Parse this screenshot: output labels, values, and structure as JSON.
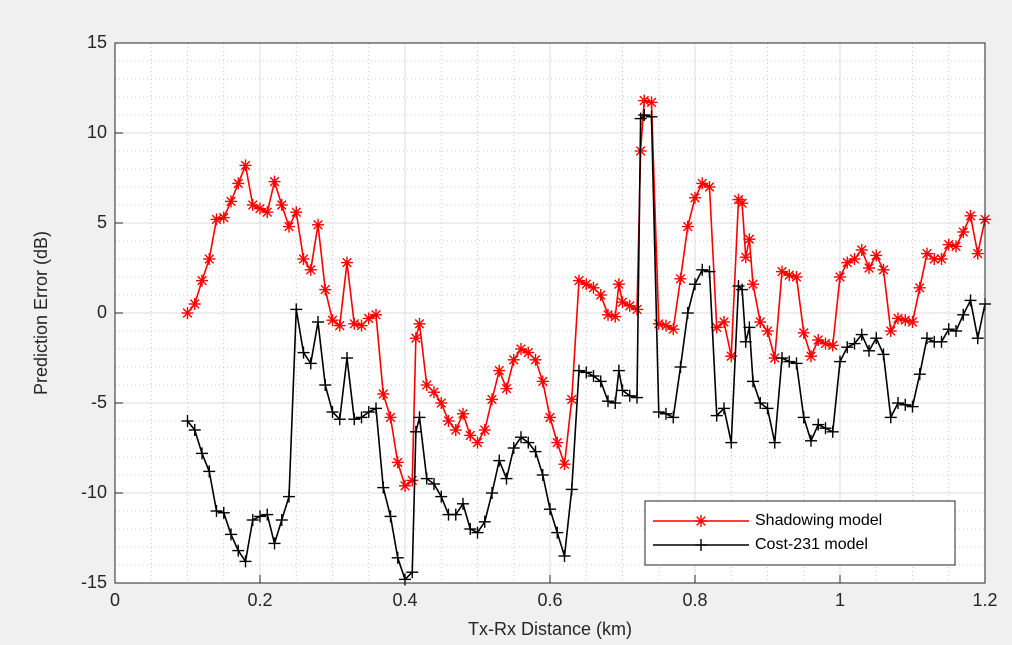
{
  "chart_data": {
    "type": "line",
    "xlabel": "Tx-Rx Distance (km)",
    "ylabel": "Prediction Error (dB)",
    "x": [
      0.1,
      0.11,
      0.12,
      0.13,
      0.14,
      0.15,
      0.16,
      0.17,
      0.18,
      0.19,
      0.2,
      0.21,
      0.22,
      0.23,
      0.24,
      0.25,
      0.26,
      0.27,
      0.28,
      0.29,
      0.3,
      0.31,
      0.32,
      0.33,
      0.34,
      0.35,
      0.36,
      0.37,
      0.38,
      0.39,
      0.4,
      0.41,
      0.415,
      0.42,
      0.43,
      0.44,
      0.45,
      0.46,
      0.47,
      0.48,
      0.49,
      0.5,
      0.51,
      0.52,
      0.53,
      0.54,
      0.55,
      0.56,
      0.57,
      0.58,
      0.59,
      0.6,
      0.61,
      0.62,
      0.63,
      0.64,
      0.65,
      0.66,
      0.67,
      0.68,
      0.69,
      0.695,
      0.7,
      0.71,
      0.72,
      0.725,
      0.73,
      0.74,
      0.75,
      0.76,
      0.77,
      0.78,
      0.79,
      0.8,
      0.81,
      0.82,
      0.83,
      0.84,
      0.85,
      0.86,
      0.865,
      0.87,
      0.875,
      0.88,
      0.89,
      0.9,
      0.91,
      0.92,
      0.93,
      0.94,
      0.95,
      0.96,
      0.97,
      0.98,
      0.99,
      1.0,
      1.01,
      1.02,
      1.03,
      1.04,
      1.05,
      1.06,
      1.07,
      1.08,
      1.09,
      1.1,
      1.11,
      1.12,
      1.13,
      1.14,
      1.15,
      1.16,
      1.17,
      1.18,
      1.19,
      1.2
    ],
    "series": [
      {
        "name": "Shadowing model",
        "color": "#ff0000",
        "marker": "asterisk",
        "values": [
          0,
          0.5,
          1.8,
          3.0,
          5.2,
          5.3,
          6.2,
          7.2,
          8.2,
          6.0,
          5.8,
          5.6,
          7.3,
          6.0,
          4.8,
          5.6,
          3.0,
          2.4,
          4.9,
          1.3,
          -0.4,
          -0.7,
          2.8,
          -0.6,
          -0.7,
          -0.3,
          -0.1,
          -4.5,
          -5.8,
          -8.3,
          -9.6,
          -9.3,
          -1.4,
          -0.6,
          -4.0,
          -4.4,
          -5.0,
          -6.0,
          -6.5,
          -5.6,
          -6.8,
          -7.2,
          -6.5,
          -4.8,
          -3.2,
          -4.2,
          -2.6,
          -2.0,
          -2.2,
          -2.6,
          -3.8,
          -5.8,
          -7.2,
          -8.4,
          -4.8,
          1.8,
          1.6,
          1.4,
          1.0,
          -0.1,
          -0.2,
          1.6,
          0.6,
          0.4,
          0.2,
          9.0,
          11.8,
          11.7,
          -0.6,
          -0.7,
          -0.9,
          1.9,
          4.8,
          6.4,
          7.2,
          7.0,
          -0.8,
          -0.5,
          -2.4,
          6.3,
          6.1,
          3.1,
          4.1,
          1.6,
          -0.5,
          -1.0,
          -2.5,
          2.3,
          2.1,
          2.0,
          -1.1,
          -2.4,
          -1.5,
          -1.7,
          -1.8,
          2.0,
          2.8,
          3.0,
          3.5,
          2.5,
          3.2,
          2.4,
          -1.0,
          -0.3,
          -0.4,
          -0.5,
          1.4,
          3.3,
          3.0,
          3.0,
          3.8,
          3.7,
          4.5,
          5.4,
          3.3,
          5.2
        ]
      },
      {
        "name": "Cost-231 model",
        "color": "#000000",
        "marker": "plus",
        "values": [
          -6.0,
          -6.5,
          -7.8,
          -8.8,
          -11.0,
          -11.1,
          -12.3,
          -13.2,
          -13.8,
          -11.5,
          -11.3,
          -11.2,
          -12.8,
          -11.5,
          -10.2,
          0.2,
          -2.2,
          -2.8,
          -0.5,
          -4.0,
          -5.5,
          -5.9,
          -2.5,
          -5.9,
          -5.8,
          -5.5,
          -5.3,
          -9.7,
          -11.3,
          -13.6,
          -14.8,
          -14.4,
          -6.6,
          -5.8,
          -9.2,
          -9.5,
          -10.2,
          -11.2,
          -11.2,
          -10.6,
          -12.0,
          -12.2,
          -11.6,
          -10.0,
          -8.2,
          -9.2,
          -7.5,
          -6.9,
          -7.2,
          -7.7,
          -9.0,
          -10.9,
          -12.2,
          -13.5,
          -9.8,
          -3.2,
          -3.3,
          -3.5,
          -3.8,
          -4.9,
          -5.0,
          -3.2,
          -4.3,
          -4.6,
          -4.7,
          10.8,
          11.0,
          10.9,
          -5.5,
          -5.6,
          -5.8,
          -3.0,
          0.0,
          1.6,
          2.4,
          2.3,
          -5.7,
          -5.3,
          -7.2,
          1.5,
          1.3,
          -1.6,
          -0.8,
          -3.8,
          -5.0,
          -5.3,
          -7.2,
          -2.5,
          -2.7,
          -2.8,
          -5.8,
          -7.1,
          -6.2,
          -6.4,
          -6.6,
          -2.7,
          -1.9,
          -1.7,
          -1.2,
          -2.1,
          -1.4,
          -2.3,
          -5.8,
          -5.0,
          -5.1,
          -5.2,
          -3.4,
          -1.4,
          -1.6,
          -1.6,
          -0.9,
          -1.0,
          -0.1,
          0.7,
          -1.4,
          0.5
        ]
      }
    ],
    "xlim": [
      0,
      1.2
    ],
    "xticks": [
      0,
      0.2,
      0.4,
      0.6,
      0.8,
      1,
      1.2
    ],
    "ylim": [
      -15,
      15
    ],
    "yticks": [
      -15,
      -10,
      -5,
      0,
      5,
      10,
      15
    ],
    "grid": true,
    "minor_grid": true,
    "legend": "lower right"
  }
}
